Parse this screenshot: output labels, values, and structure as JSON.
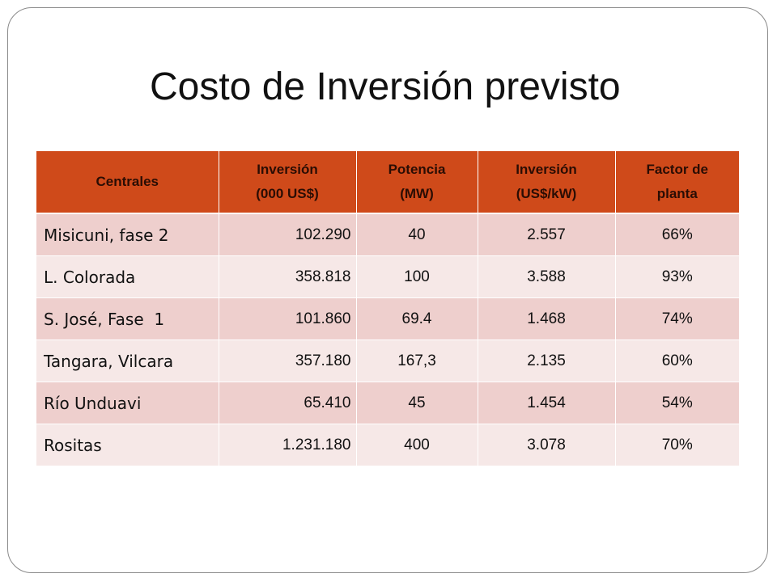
{
  "slide": {
    "title": "Costo de Inversión previsto"
  },
  "table": {
    "headers": [
      {
        "line1": "Centrales",
        "line2": ""
      },
      {
        "line1": "Inversión",
        "line2": "(000 US$)"
      },
      {
        "line1": "Potencia",
        "line2": "(MW)"
      },
      {
        "line1": "Inversión",
        "line2": "(US$/kW)"
      },
      {
        "line1": "Factor de",
        "line2": "planta"
      }
    ],
    "rows": [
      {
        "central": "Misicuni, fase 2",
        "inversion": "102.290",
        "potencia": "40",
        "inversion_kw": "2.557",
        "factor": "66%"
      },
      {
        "central": "L. Colorada",
        "inversion": "358.818",
        "potencia": "100",
        "inversion_kw": "3.588",
        "factor": "93%"
      },
      {
        "central": "S. José, Fase  1",
        "inversion": "101.860",
        "potencia": "69.4",
        "inversion_kw": "1.468",
        "factor": "74%"
      },
      {
        "central": "Tangara, Vilcara",
        "inversion": "357.180",
        "potencia": "167,3",
        "inversion_kw": "2.135",
        "factor": "60%"
      },
      {
        "central": "Río Unduavi",
        "inversion": "65.410",
        "potencia": "45",
        "inversion_kw": "1.454",
        "factor": "54%"
      },
      {
        "central": "Rositas",
        "inversion": "1.231.180",
        "potencia": "400",
        "inversion_kw": "3.078",
        "factor": "70%"
      }
    ]
  },
  "colors": {
    "header_bg": "#cf4a1a",
    "row_odd_bg": "#eecfcd",
    "row_even_bg": "#f6e8e7",
    "frame_border": "#8a8a8a"
  }
}
